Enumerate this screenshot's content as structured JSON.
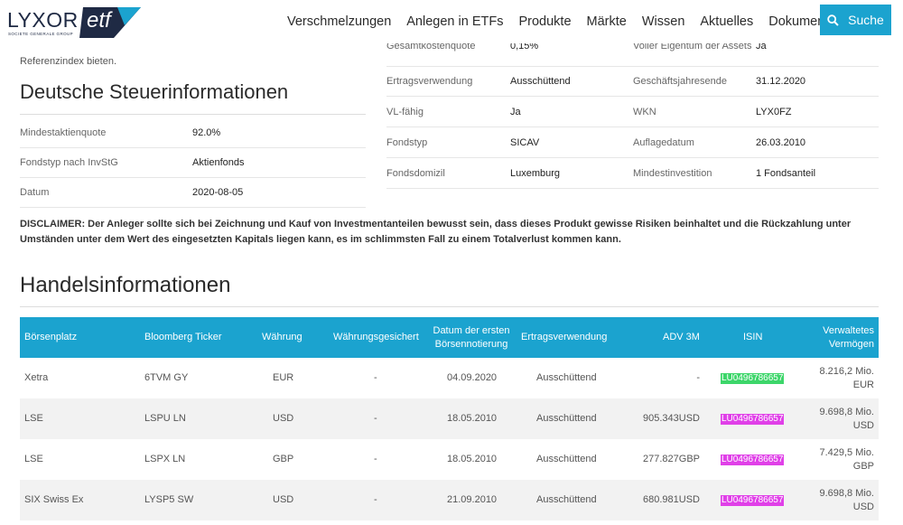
{
  "header": {
    "logo_text": "LYXOR",
    "logo_etf": "etf",
    "logo_sub": "SOCIETE GENERALE GROUP",
    "nav": [
      "Verschmelzungen",
      "Anlegen in ETFs",
      "Produkte",
      "Märkte",
      "Wissen",
      "Aktuelles",
      "Dokumente"
    ],
    "search_label": "Suche",
    "accent_color": "#1ba3cf"
  },
  "left": {
    "intro_fragment": "Referenzindex bieten.",
    "tax_title": "Deutsche Steuerinformationen",
    "tax_rows": [
      {
        "key": "Mindestaktienquote",
        "value": "92.0%"
      },
      {
        "key": "Fondstyp nach InvStG",
        "value": "Aktienfonds"
      },
      {
        "key": "Datum",
        "value": "2020-08-05"
      }
    ]
  },
  "right": {
    "top_partial": {
      "key1": "Gesamtkostenquote",
      "val1": "0,15%",
      "key2": "Voller Eigentum der Assets",
      "val2": "Ja"
    },
    "rows": [
      {
        "key1": "Ertragsverwendung",
        "val1": "Ausschüttend",
        "key2": "Geschäftsjahresende",
        "val2": "31.12.2020"
      },
      {
        "key1": "VL-fähig",
        "val1": "Ja",
        "key2": "WKN",
        "val2": "LYX0FZ"
      },
      {
        "key1": "Fondstyp",
        "val1": "SICAV",
        "key2": "Auflagedatum",
        "val2": "26.03.2010"
      },
      {
        "key1": "Fondsdomizil",
        "val1": "Luxemburg",
        "key2": "Mindestinvestition",
        "val2": "1 Fondsanteil"
      }
    ]
  },
  "disclaimer": "DISCLAIMER: Der Anleger sollte sich bei Zeichnung und Kauf von Investmentanteilen bewusst sein, dass dieses Produkt gewisse Risiken beinhaltet und die Rückzahlung unter Umständen unter dem Wert des eingesetzten Kapitals liegen kann, es im schlimmsten Fall zu einem Totalverlust kommen kann.",
  "trading": {
    "title": "Handelsinformationen",
    "columns": {
      "boersenplatz": "Börsenplatz",
      "ticker": "Bloomberg Ticker",
      "waehrung": "Währung",
      "gesichert": "Währungsgesichert",
      "datum_l1": "Datum der ersten",
      "datum_l2": "Börsennotierung",
      "ertrag": "Ertragsverwendung",
      "adv": "ADV 3M",
      "isin": "ISIN",
      "verm_l1": "Verwaltetes",
      "verm_l2": "Vermögen"
    },
    "rows": [
      {
        "platz": "Xetra",
        "ticker": "6TVM GY",
        "waehrung": "EUR",
        "gesichert": "-",
        "datum": "04.09.2020",
        "ertrag": "Ausschüttend",
        "adv": "-",
        "isin": "LU0496786657",
        "isin_color": "green",
        "verm_l1": "8.216,2 Mio.",
        "verm_l2": "EUR"
      },
      {
        "platz": "LSE",
        "ticker": "LSPU LN",
        "waehrung": "USD",
        "gesichert": "-",
        "datum": "18.05.2010",
        "ertrag": "Ausschüttend",
        "adv": "905.343USD",
        "isin": "LU0496786657",
        "isin_color": "pink",
        "verm_l1": "9.698,8 Mio.",
        "verm_l2": "USD"
      },
      {
        "platz": "LSE",
        "ticker": "LSPX LN",
        "waehrung": "GBP",
        "gesichert": "-",
        "datum": "18.05.2010",
        "ertrag": "Ausschüttend",
        "adv": "277.827GBP",
        "isin": "LU0496786657",
        "isin_color": "pink",
        "verm_l1": "7.429,5 Mio.",
        "verm_l2": "GBP"
      },
      {
        "platz": "SIX Swiss Ex",
        "ticker": "LYSP5 SW",
        "waehrung": "USD",
        "gesichert": "-",
        "datum": "21.09.2010",
        "ertrag": "Ausschüttend",
        "adv": "680.981USD",
        "isin": "LU0496786657",
        "isin_color": "pink",
        "verm_l1": "9.698,8 Mio.",
        "verm_l2": "USD"
      }
    ]
  }
}
